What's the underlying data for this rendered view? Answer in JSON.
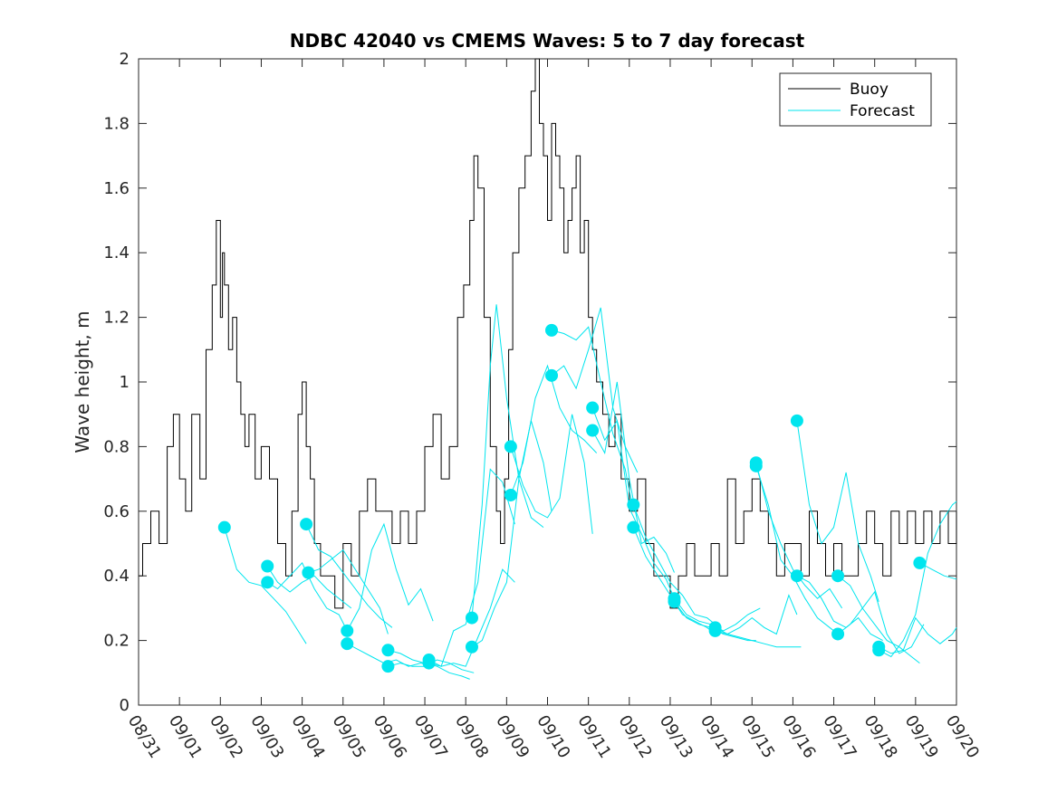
{
  "chart_data": {
    "type": "line",
    "title": "NDBC 42040 vs CMEMS Waves: 5 to 7 day forecast",
    "xlabel": "",
    "ylabel": "Wave height, m",
    "ylim": [
      0,
      2
    ],
    "xlim_days": [
      0,
      20
    ],
    "y_ticks": [
      0,
      0.2,
      0.4,
      0.6,
      0.8,
      1,
      1.2,
      1.4,
      1.6,
      1.8,
      2
    ],
    "y_tick_labels": [
      "0",
      "0.2",
      "0.4",
      "0.6",
      "0.8",
      "1",
      "1.2",
      "1.4",
      "1.6",
      "1.8",
      "2"
    ],
    "x_tick_labels": [
      "08/31",
      "09/01",
      "09/02",
      "09/03",
      "09/04",
      "09/05",
      "09/06",
      "09/07",
      "09/08",
      "09/09",
      "09/10",
      "09/11",
      "09/12",
      "09/13",
      "09/14",
      "09/15",
      "09/16",
      "09/17",
      "09/18",
      "09/19",
      "09/20"
    ],
    "legend": {
      "placement": "top-right",
      "entries": [
        "Buoy",
        "Forecast"
      ]
    },
    "colors": {
      "buoy": "#000000",
      "forecast": "#00e5ee",
      "axes": "#262626"
    },
    "buoy": {
      "name": "Buoy",
      "x": [
        0,
        0.1,
        0.3,
        0.5,
        0.7,
        0.85,
        1.0,
        1.15,
        1.3,
        1.5,
        1.65,
        1.8,
        1.9,
        2.0,
        2.05,
        2.1,
        2.2,
        2.3,
        2.4,
        2.5,
        2.6,
        2.7,
        2.85,
        3.0,
        3.2,
        3.4,
        3.6,
        3.75,
        3.9,
        4.0,
        4.1,
        4.2,
        4.3,
        4.45,
        4.6,
        4.8,
        5.0,
        5.2,
        5.4,
        5.6,
        5.8,
        6.0,
        6.2,
        6.4,
        6.6,
        6.8,
        7.0,
        7.2,
        7.4,
        7.6,
        7.8,
        7.95,
        8.1,
        8.2,
        8.3,
        8.45,
        8.6,
        8.75,
        8.85,
        8.95,
        9.05,
        9.15,
        9.3,
        9.45,
        9.6,
        9.7,
        9.8,
        9.9,
        10.0,
        10.1,
        10.2,
        10.3,
        10.4,
        10.5,
        10.6,
        10.7,
        10.8,
        10.9,
        11.0,
        11.1,
        11.2,
        11.35,
        11.5,
        11.65,
        11.8,
        12.0,
        12.2,
        12.4,
        12.6,
        12.8,
        13.0,
        13.2,
        13.4,
        13.6,
        13.8,
        14.0,
        14.2,
        14.4,
        14.6,
        14.8,
        15.0,
        15.2,
        15.4,
        15.6,
        15.8,
        16.0,
        16.2,
        16.4,
        16.6,
        16.8,
        17.0,
        17.2,
        17.4,
        17.6,
        17.8,
        18.0,
        18.2,
        18.4,
        18.6,
        18.8,
        19.0,
        19.2,
        19.4,
        19.6,
        19.8,
        20.0
      ],
      "values": [
        0.4,
        0.5,
        0.6,
        0.5,
        0.8,
        0.9,
        0.7,
        0.6,
        0.9,
        0.7,
        1.1,
        1.3,
        1.5,
        1.2,
        1.4,
        1.3,
        1.1,
        1.2,
        1.0,
        0.9,
        0.8,
        0.9,
        0.7,
        0.8,
        0.7,
        0.5,
        0.4,
        0.6,
        0.9,
        1.0,
        0.8,
        0.7,
        0.5,
        0.4,
        0.4,
        0.3,
        0.5,
        0.4,
        0.6,
        0.7,
        0.6,
        0.6,
        0.5,
        0.6,
        0.5,
        0.6,
        0.8,
        0.9,
        0.7,
        0.8,
        1.2,
        1.3,
        1.5,
        1.7,
        1.6,
        1.2,
        0.8,
        0.6,
        0.5,
        0.7,
        1.1,
        1.4,
        1.6,
        1.7,
        1.9,
        2.0,
        1.8,
        1.7,
        1.5,
        1.8,
        1.7,
        1.6,
        1.4,
        1.5,
        1.6,
        1.7,
        1.4,
        1.5,
        1.2,
        1.1,
        1.0,
        0.9,
        0.8,
        0.9,
        0.7,
        0.6,
        0.7,
        0.5,
        0.4,
        0.4,
        0.3,
        0.4,
        0.5,
        0.4,
        0.4,
        0.5,
        0.4,
        0.7,
        0.5,
        0.6,
        0.7,
        0.6,
        0.5,
        0.4,
        0.5,
        0.5,
        0.4,
        0.6,
        0.5,
        0.4,
        0.5,
        0.4,
        0.4,
        0.5,
        0.6,
        0.5,
        0.4,
        0.6,
        0.5,
        0.6,
        0.5,
        0.6,
        0.5,
        0.6,
        0.5,
        0.6
      ]
    },
    "forecast": {
      "name": "Forecast",
      "runs": [
        {
          "x": [
            2.1,
            2.4,
            2.7,
            3.0,
            3.3,
            3.6,
            3.9,
            4.1
          ],
          "values": [
            0.55,
            0.42,
            0.38,
            0.37,
            0.33,
            0.29,
            0.23,
            0.19
          ]
        },
        {
          "x": [
            3.15,
            3.4,
            3.7,
            4.0,
            4.3,
            4.6,
            4.9,
            5.2
          ],
          "values": [
            0.43,
            0.38,
            0.35,
            0.38,
            0.4,
            0.36,
            0.33,
            0.3
          ]
        },
        {
          "x": [
            3.15,
            3.4,
            3.7,
            4.0,
            4.3,
            4.6,
            4.9,
            5.1
          ],
          "values": [
            0.38,
            0.36,
            0.4,
            0.44,
            0.36,
            0.3,
            0.28,
            0.23
          ]
        },
        {
          "x": [
            4.1,
            4.4,
            4.7,
            5.0,
            5.3,
            5.6,
            5.9,
            6.2
          ],
          "values": [
            0.56,
            0.48,
            0.46,
            0.41,
            0.36,
            0.31,
            0.27,
            0.24
          ]
        },
        {
          "x": [
            4.15,
            4.4,
            4.7,
            5.0,
            5.3,
            5.6,
            5.9,
            6.1
          ],
          "values": [
            0.41,
            0.42,
            0.45,
            0.48,
            0.42,
            0.36,
            0.3,
            0.22
          ]
        },
        {
          "x": [
            5.1,
            5.4,
            5.7,
            6.0,
            6.3,
            6.6,
            6.9,
            7.2
          ],
          "values": [
            0.23,
            0.3,
            0.48,
            0.56,
            0.42,
            0.31,
            0.36,
            0.26
          ]
        },
        {
          "x": [
            5.1,
            5.4,
            5.7,
            6.0,
            6.3,
            6.6,
            6.9,
            7.2
          ],
          "values": [
            0.19,
            0.17,
            0.15,
            0.13,
            0.14,
            0.12,
            0.13,
            0.12
          ]
        },
        {
          "x": [
            6.1,
            6.4,
            6.7,
            7.0,
            7.3,
            7.6,
            7.9,
            8.1
          ],
          "values": [
            0.17,
            0.16,
            0.14,
            0.13,
            0.12,
            0.1,
            0.09,
            0.08
          ]
        },
        {
          "x": [
            6.1,
            6.4,
            6.7,
            7.0,
            7.3,
            7.6,
            7.9,
            8.2
          ],
          "values": [
            0.12,
            0.13,
            0.12,
            0.12,
            0.14,
            0.13,
            0.11,
            0.1
          ]
        },
        {
          "x": [
            7.1,
            7.4,
            7.7,
            8.0,
            8.3,
            8.6,
            8.9,
            9.2
          ],
          "values": [
            0.14,
            0.12,
            0.13,
            0.12,
            0.21,
            0.3,
            0.42,
            0.38
          ]
        },
        {
          "x": [
            7.1,
            7.4,
            7.7,
            8.0,
            8.3,
            8.6,
            8.9,
            9.2
          ],
          "values": [
            0.13,
            0.12,
            0.23,
            0.25,
            0.38,
            0.73,
            0.69,
            0.56
          ]
        },
        {
          "x": [
            8.15,
            8.4,
            8.6,
            8.75,
            9.0,
            9.3,
            9.6,
            9.9
          ],
          "values": [
            0.27,
            0.62,
            1.05,
            1.24,
            0.95,
            0.7,
            0.58,
            0.55
          ]
        },
        {
          "x": [
            8.15,
            8.4,
            8.7,
            9.0,
            9.3,
            9.6,
            9.9,
            10.1
          ],
          "values": [
            0.18,
            0.2,
            0.3,
            0.38,
            0.7,
            0.88,
            0.75,
            0.6
          ]
        },
        {
          "x": [
            9.1,
            9.4,
            9.7,
            10.0,
            10.3,
            10.6,
            10.9,
            11.1
          ],
          "values": [
            0.8,
            0.68,
            0.6,
            0.58,
            0.64,
            0.9,
            0.75,
            0.53
          ]
        },
        {
          "x": [
            9.1,
            9.4,
            9.7,
            10.0,
            10.3,
            10.6,
            10.9,
            11.2
          ],
          "values": [
            0.65,
            0.75,
            0.95,
            1.05,
            0.92,
            0.85,
            0.82,
            0.78
          ]
        },
        {
          "x": [
            10.1,
            10.4,
            10.7,
            11.0,
            11.3,
            11.6,
            11.9,
            12.1
          ],
          "values": [
            1.16,
            1.15,
            1.13,
            1.17,
            1.0,
            0.84,
            0.73,
            0.6
          ]
        },
        {
          "x": [
            10.1,
            10.4,
            10.7,
            11.0,
            11.3,
            11.6,
            11.9,
            12.2
          ],
          "values": [
            1.02,
            1.05,
            0.98,
            1.1,
            1.23,
            0.92,
            0.8,
            0.72
          ]
        },
        {
          "x": [
            11.1,
            11.4,
            11.7,
            12.0,
            12.3,
            12.6,
            12.9,
            13.2
          ],
          "values": [
            0.92,
            0.82,
            0.88,
            0.61,
            0.53,
            0.44,
            0.39,
            0.3
          ]
        },
        {
          "x": [
            11.1,
            11.4,
            11.7,
            12.0,
            12.3,
            12.6,
            12.9,
            13.1
          ],
          "values": [
            0.85,
            0.78,
            1.0,
            0.7,
            0.5,
            0.52,
            0.47,
            0.41
          ]
        },
        {
          "x": [
            12.1,
            12.4,
            12.7,
            13.0,
            13.3,
            13.6,
            13.9,
            14.2
          ],
          "values": [
            0.62,
            0.52,
            0.45,
            0.38,
            0.34,
            0.28,
            0.27,
            0.24
          ]
        },
        {
          "x": [
            12.1,
            12.4,
            12.7,
            13.0,
            13.3,
            13.6,
            13.9,
            14.1
          ],
          "values": [
            0.55,
            0.46,
            0.4,
            0.34,
            0.28,
            0.26,
            0.24,
            0.22
          ]
        },
        {
          "x": [
            13.1,
            13.4,
            13.7,
            14.0,
            14.3,
            14.6,
            14.9,
            15.2
          ],
          "values": [
            0.33,
            0.28,
            0.26,
            0.25,
            0.23,
            0.25,
            0.28,
            0.3
          ]
        },
        {
          "x": [
            13.1,
            13.4,
            13.7,
            14.0,
            14.3,
            14.6,
            14.9,
            15.1
          ],
          "values": [
            0.32,
            0.27,
            0.25,
            0.24,
            0.22,
            0.21,
            0.2,
            0.2
          ]
        },
        {
          "x": [
            14.1,
            14.4,
            14.7,
            15.0,
            15.3,
            15.6,
            15.9,
            16.2
          ],
          "values": [
            0.24,
            0.22,
            0.21,
            0.2,
            0.19,
            0.18,
            0.18,
            0.18
          ]
        },
        {
          "x": [
            14.1,
            14.4,
            14.7,
            15.0,
            15.3,
            15.6,
            15.9,
            16.1
          ],
          "values": [
            0.23,
            0.22,
            0.24,
            0.27,
            0.24,
            0.22,
            0.34,
            0.28
          ]
        },
        {
          "x": [
            15.1,
            15.4,
            15.7,
            16.0,
            16.3,
            16.6,
            16.9,
            17.2
          ],
          "values": [
            0.75,
            0.6,
            0.5,
            0.42,
            0.37,
            0.33,
            0.36,
            0.3
          ]
        },
        {
          "x": [
            15.1,
            15.4,
            15.7,
            16.0,
            16.3,
            16.6,
            16.9,
            17.1
          ],
          "values": [
            0.74,
            0.62,
            0.45,
            0.4,
            0.33,
            0.27,
            0.24,
            0.22
          ]
        },
        {
          "x": [
            16.1,
            16.4,
            16.7,
            17.0,
            17.3,
            17.6,
            17.9,
            18.1
          ],
          "values": [
            0.88,
            0.62,
            0.5,
            0.55,
            0.72,
            0.5,
            0.4,
            0.32
          ]
        },
        {
          "x": [
            16.1,
            16.4,
            16.7,
            17.0,
            17.3,
            17.6,
            17.9,
            18.2
          ],
          "values": [
            0.4,
            0.38,
            0.33,
            0.26,
            0.24,
            0.27,
            0.22,
            0.2
          ]
        },
        {
          "x": [
            17.1,
            17.4,
            17.7,
            18.0,
            18.3,
            18.6,
            18.9,
            19.1
          ],
          "values": [
            0.4,
            0.37,
            0.3,
            0.25,
            0.2,
            0.18,
            0.15,
            0.13
          ]
        },
        {
          "x": [
            17.1,
            17.4,
            17.7,
            18.0,
            18.3,
            18.6,
            18.9,
            19.2
          ],
          "values": [
            0.22,
            0.25,
            0.3,
            0.35,
            0.22,
            0.16,
            0.18,
            0.25
          ]
        },
        {
          "x": [
            18.1,
            18.4,
            18.7,
            19.0,
            19.3,
            19.6,
            19.9,
            20.0
          ],
          "values": [
            0.18,
            0.16,
            0.17,
            0.27,
            0.22,
            0.19,
            0.22,
            0.24
          ]
        },
        {
          "x": [
            18.1,
            18.4,
            18.7,
            19.0,
            19.3,
            19.6,
            19.9,
            20.0
          ],
          "values": [
            0.17,
            0.15,
            0.2,
            0.28,
            0.47,
            0.56,
            0.62,
            0.63
          ]
        },
        {
          "x": [
            19.1,
            19.4,
            19.7,
            20.0
          ],
          "values": [
            0.44,
            0.42,
            0.4,
            0.39
          ]
        }
      ]
    }
  }
}
